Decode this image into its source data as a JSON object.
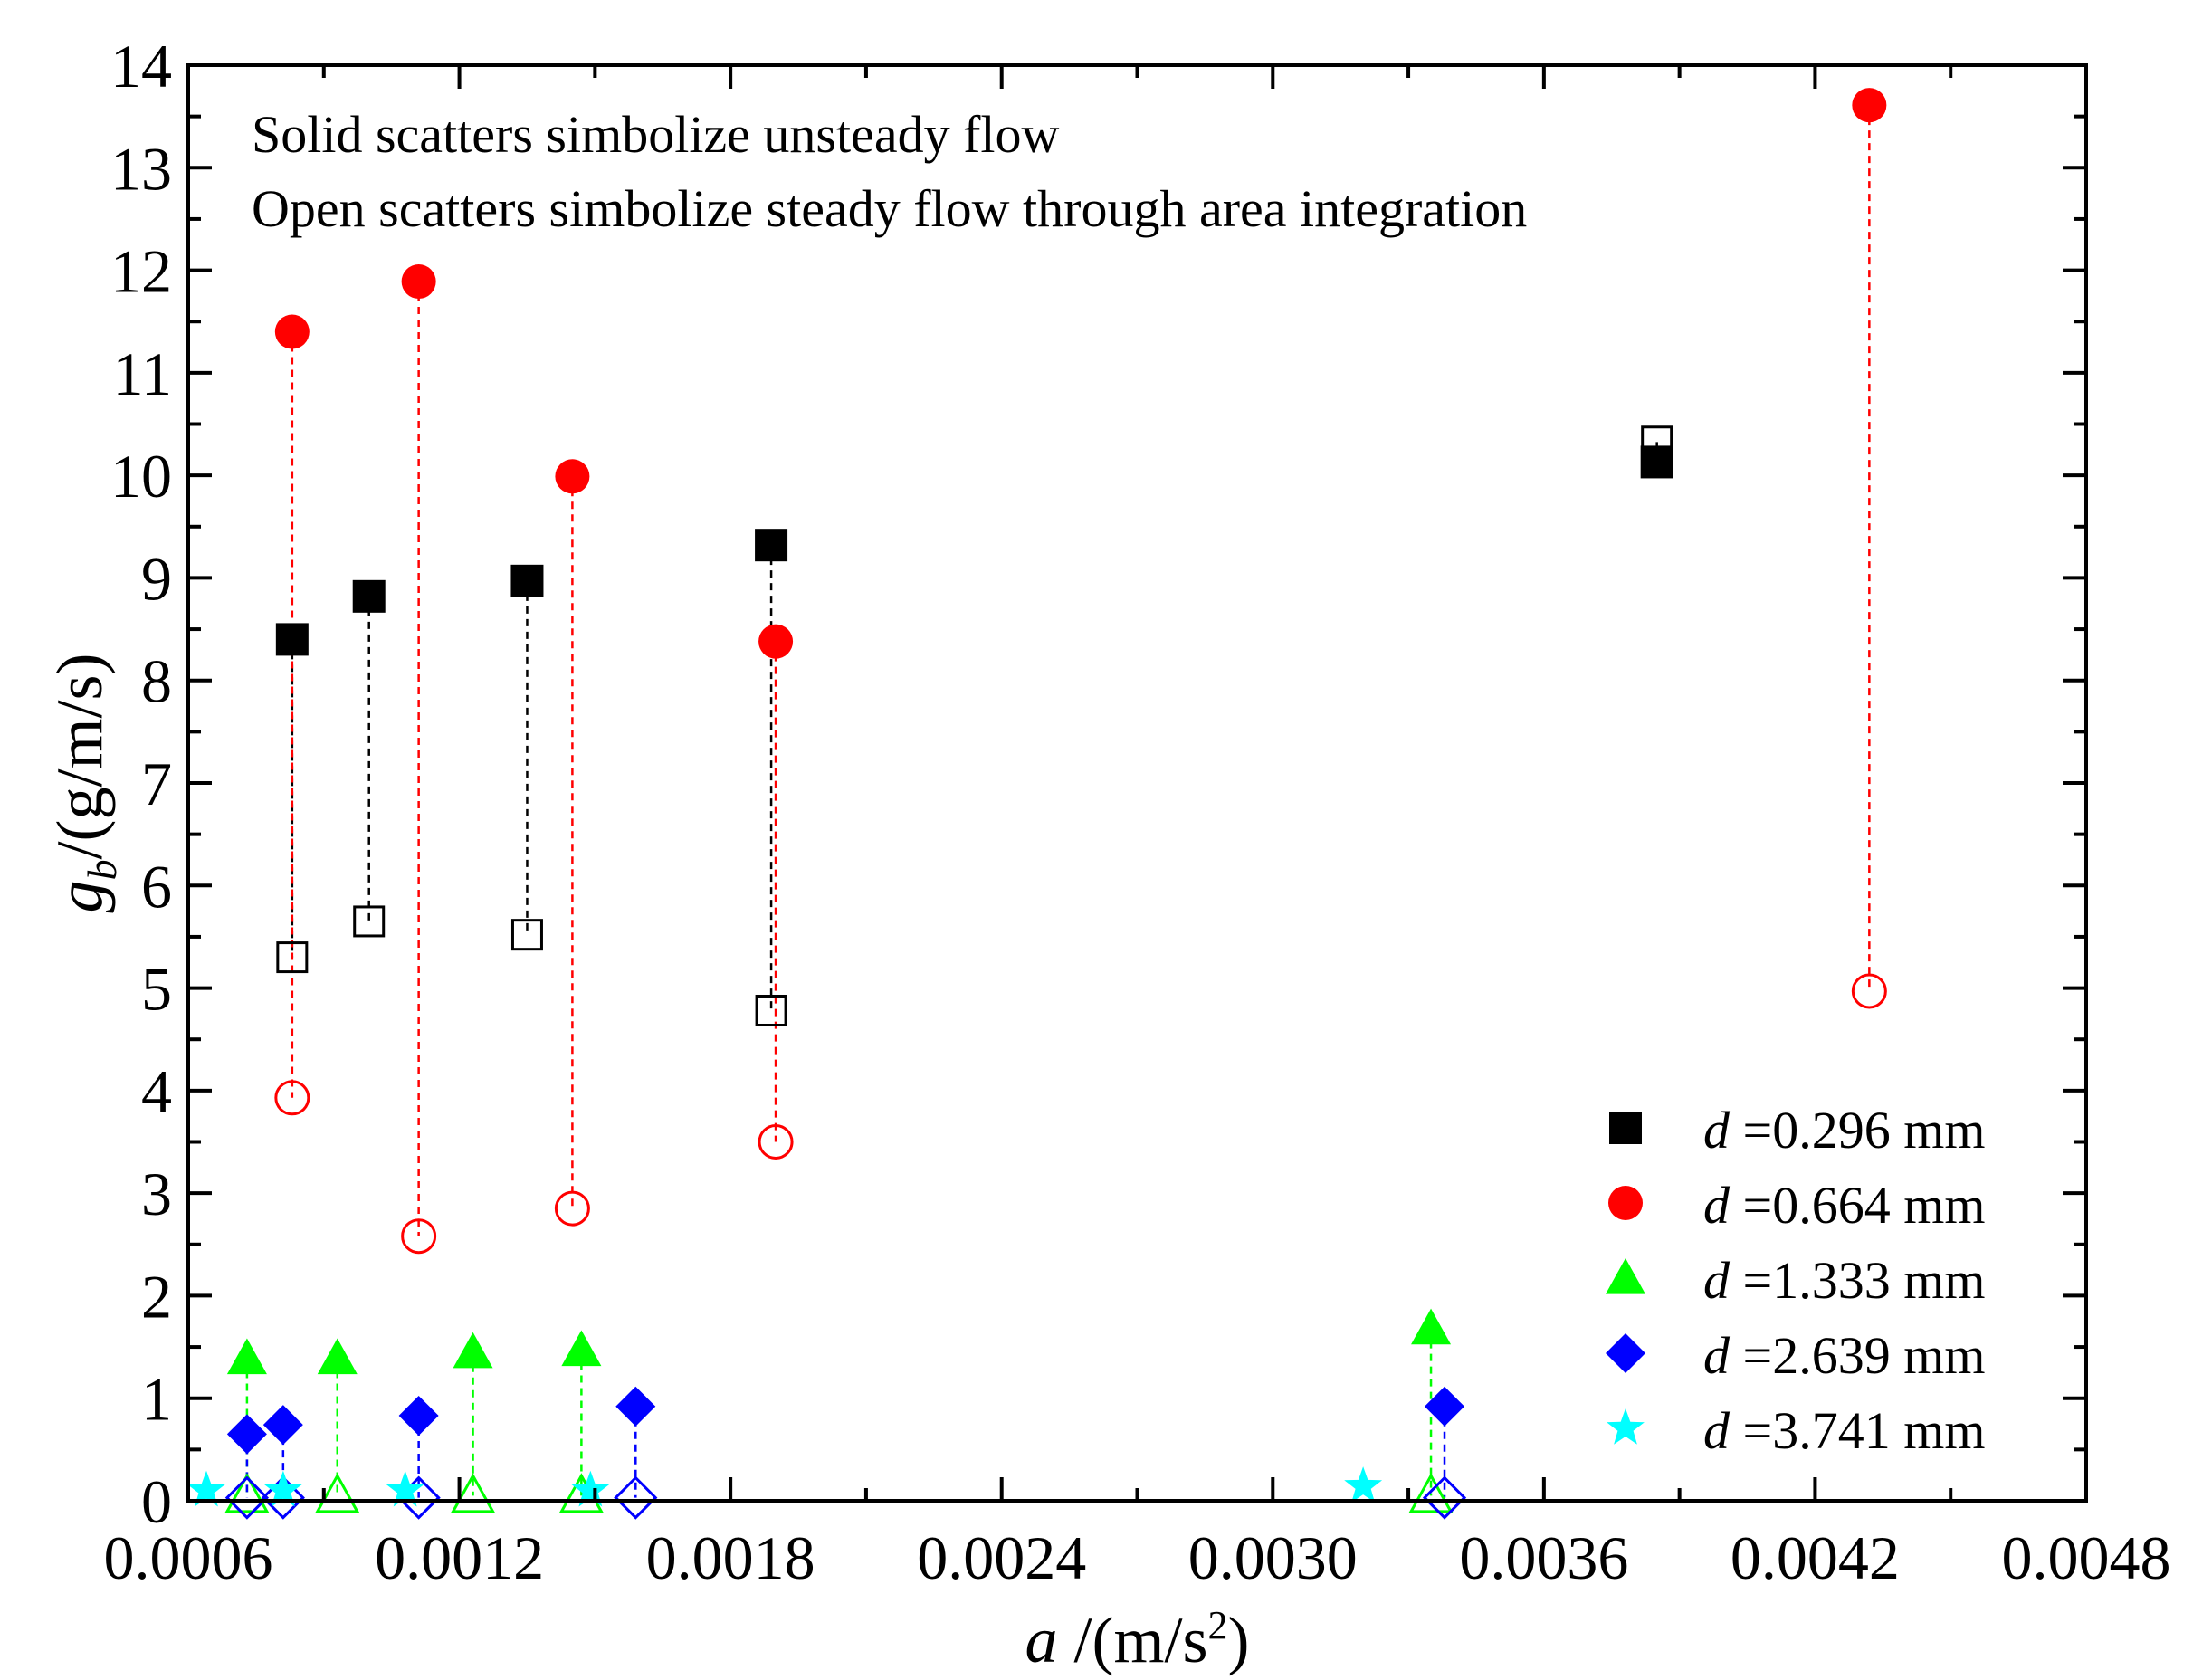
{
  "chart_data": {
    "type": "scatter",
    "title": "",
    "xlabel": {
      "var": "a",
      "rest": " /(m/s",
      "sup": "2",
      "close": ")"
    },
    "ylabel": {
      "var": "g",
      "sub": "b",
      "rest": "/(g/m/s)"
    },
    "xlim": [
      0.0006,
      0.0048
    ],
    "ylim": [
      0,
      14
    ],
    "xticks": [
      "0.0006",
      "0.0012",
      "0.0018",
      "0.0024",
      "0.0030",
      "0.0036",
      "0.0042",
      "0.0048"
    ],
    "yticks": [
      "0",
      "1",
      "2",
      "3",
      "4",
      "5",
      "6",
      "7",
      "8",
      "9",
      "10",
      "11",
      "12",
      "13",
      "14"
    ],
    "annotations": [
      "Solid scatters simbolize unsteady flow",
      "Open scatters simbolize steady flow through area integration"
    ],
    "series": [
      {
        "name": "d =0.296 mm",
        "label_var": "d",
        "label_rest": " =0.296 mm",
        "marker": "square",
        "color": "#000000",
        "points": [
          {
            "x": 0.00083,
            "solid": 8.4,
            "open": 5.3
          },
          {
            "x": 0.001,
            "solid": 8.82,
            "open": 5.65
          },
          {
            "x": 0.00135,
            "solid": 8.97,
            "open": 5.52
          },
          {
            "x": 0.00189,
            "solid": 9.32,
            "open": 4.78
          },
          {
            "x": 0.00385,
            "solid": 10.13,
            "open": 10.33
          }
        ]
      },
      {
        "name": "d =0.664 mm",
        "label_var": "d",
        "label_rest": " =0.664 mm",
        "marker": "circle",
        "color": "#ff0000",
        "points": [
          {
            "x": 0.00083,
            "solid": 11.4,
            "open": 3.93
          },
          {
            "x": 0.00111,
            "solid": 11.89,
            "open": 2.58
          },
          {
            "x": 0.00145,
            "solid": 9.99,
            "open": 2.85
          },
          {
            "x": 0.0019,
            "solid": 8.38,
            "open": 3.5
          },
          {
            "x": 0.00432,
            "solid": 13.61,
            "open": 4.97
          }
        ]
      },
      {
        "name": "d =1.333 mm",
        "label_var": "d",
        "label_rest": " =1.333 mm",
        "marker": "triangle",
        "color": "#00ff00",
        "points": [
          {
            "x": 0.00073,
            "solid": 1.39,
            "open": 0.05
          },
          {
            "x": 0.00093,
            "solid": 1.39,
            "open": 0.05
          },
          {
            "x": 0.00123,
            "solid": 1.45,
            "open": 0.05
          },
          {
            "x": 0.00147,
            "solid": 1.47,
            "open": 0.05
          },
          {
            "x": 0.00335,
            "solid": 1.68,
            "open": 0.05
          }
        ]
      },
      {
        "name": "d =2.639 mm",
        "label_var": "d",
        "label_rest": " =2.639 mm",
        "marker": "diamond",
        "color": "#0000ff",
        "points": [
          {
            "x": 0.00073,
            "solid": 0.65,
            "open": 0.03
          },
          {
            "x": 0.00081,
            "solid": 0.74,
            "open": 0.03
          },
          {
            "x": 0.00111,
            "solid": 0.83,
            "open": 0.03
          },
          {
            "x": 0.00159,
            "solid": 0.92,
            "open": 0.03
          },
          {
            "x": 0.00338,
            "solid": 0.92,
            "open": 0.03
          }
        ]
      },
      {
        "name": "d =3.741 mm",
        "label_var": "d",
        "label_rest": " =3.741 mm",
        "marker": "star",
        "color": "#00ffff",
        "points": [
          {
            "x": 0.00064,
            "solid": 0.1
          },
          {
            "x": 0.00081,
            "solid": 0.1
          },
          {
            "x": 0.00108,
            "solid": 0.1
          },
          {
            "x": 0.00149,
            "solid": 0.1
          },
          {
            "x": 0.0032,
            "solid": 0.14
          }
        ]
      }
    ]
  }
}
